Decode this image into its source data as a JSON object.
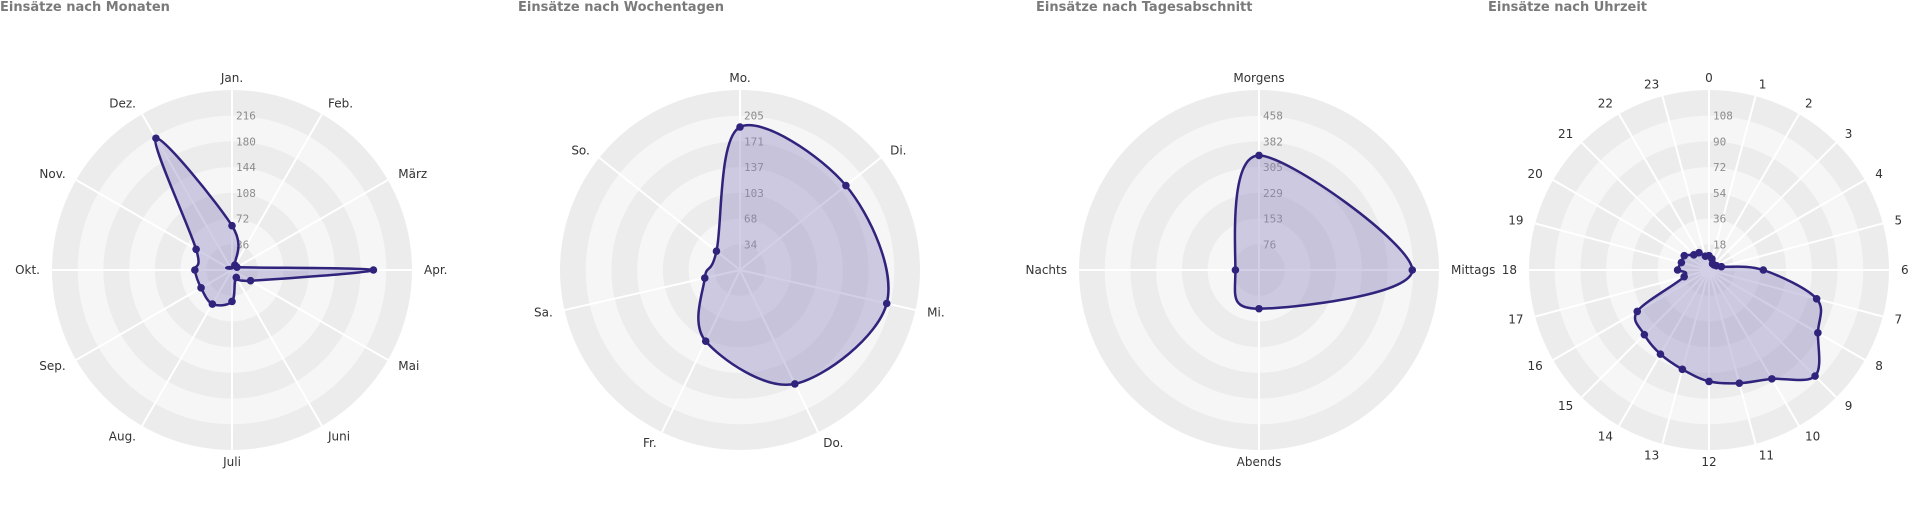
{
  "colors": {
    "line": "#2f237c",
    "fill": "#8e87c2",
    "ring_a": "#f6f6f6",
    "ring_b": "#ececec",
    "spoke": "#ffffff"
  },
  "chart_data": [
    {
      "type": "radar",
      "title": "Einsätze nach Monaten",
      "categories": [
        "Jan.",
        "Feb.",
        "März",
        "Apr.",
        "Mai",
        "Juni",
        "Juli",
        "Aug.",
        "Sep.",
        "Okt.",
        "Nov.",
        "Dez."
      ],
      "ticks": [
        "36",
        "72",
        "108",
        "144",
        "180",
        "216"
      ],
      "max": 216,
      "values": [
        62,
        8,
        8,
        198,
        30,
        12,
        44,
        55,
        50,
        52,
        58,
        213
      ]
    },
    {
      "type": "radar",
      "title": "Einsätze nach Wochentagen",
      "categories": [
        "Mo.",
        "Di.",
        "Mi.",
        "Do.",
        "Fr.",
        "Sa.",
        "So."
      ],
      "ticks": [
        "34",
        "68",
        "103",
        "137",
        "171",
        "205"
      ],
      "max": 205,
      "values": [
        190,
        180,
        200,
        168,
        105,
        48,
        40
      ]
    },
    {
      "type": "radar",
      "title": "Einsätze nach Tagesabschnitt",
      "categories": [
        "Morgens",
        "Mittags",
        "Abends",
        "Nachts"
      ],
      "ticks": [
        "76",
        "153",
        "229",
        "305",
        "382",
        "458"
      ],
      "max": 458,
      "values": [
        340,
        455,
        115,
        70
      ]
    },
    {
      "type": "radar",
      "title": "Einsätze nach Uhrzeit",
      "categories": [
        "0",
        "1",
        "2",
        "3",
        "4",
        "5",
        "6",
        "7",
        "8",
        "9",
        "10",
        "11",
        "12",
        "13",
        "14",
        "15",
        "16",
        "17",
        "18",
        "19",
        "20",
        "21",
        "22",
        "23"
      ],
      "ticks": [
        "18",
        "36",
        "54",
        "72",
        "90",
        "108"
      ],
      "max": 108,
      "values": [
        10,
        8,
        5,
        5,
        6,
        9,
        38,
        78,
        88,
        105,
        88,
        82,
        78,
        72,
        68,
        64,
        58,
        18,
        22,
        20,
        20,
        15,
        14,
        10
      ]
    }
  ]
}
